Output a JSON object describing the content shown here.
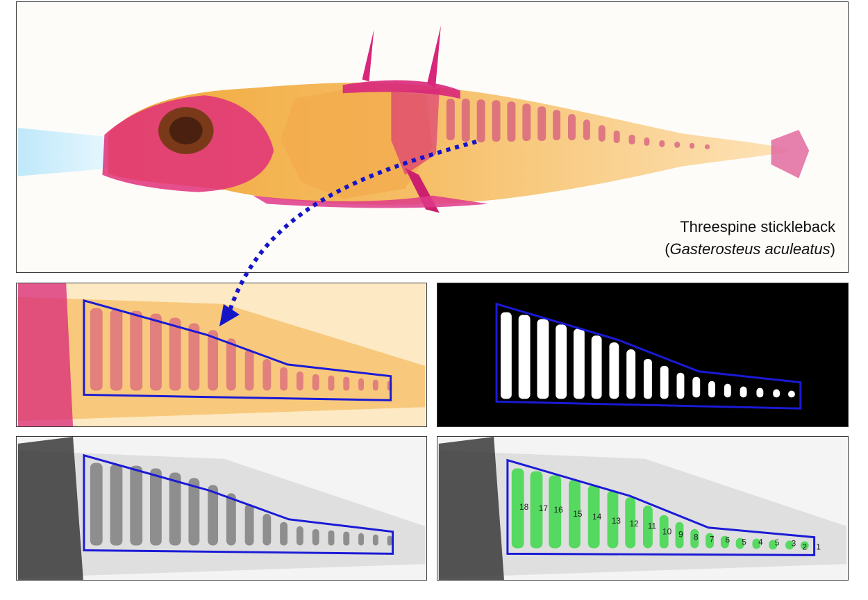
{
  "caption": {
    "common_name": "Threespine stickleback",
    "paren_open": "(",
    "scientific_name": "Gasterosteus aculeatus",
    "paren_close": ")"
  },
  "colors": {
    "bone_stain": "#d8277a",
    "cartilage_body": "#f4b35a",
    "roi_outline": "#1a1ad6",
    "arrow": "#1515c8",
    "segmentation_fill": "#3fd84a",
    "binary_background": "#000000",
    "light_blue_rays": "#9fd8f2"
  },
  "vertebra_labels": [
    "18",
    "17",
    "16",
    "15",
    "14",
    "13",
    "12",
    "11",
    "10",
    "9",
    "8",
    "7",
    "6",
    "5",
    "4",
    "5",
    "3",
    "2",
    "1"
  ]
}
